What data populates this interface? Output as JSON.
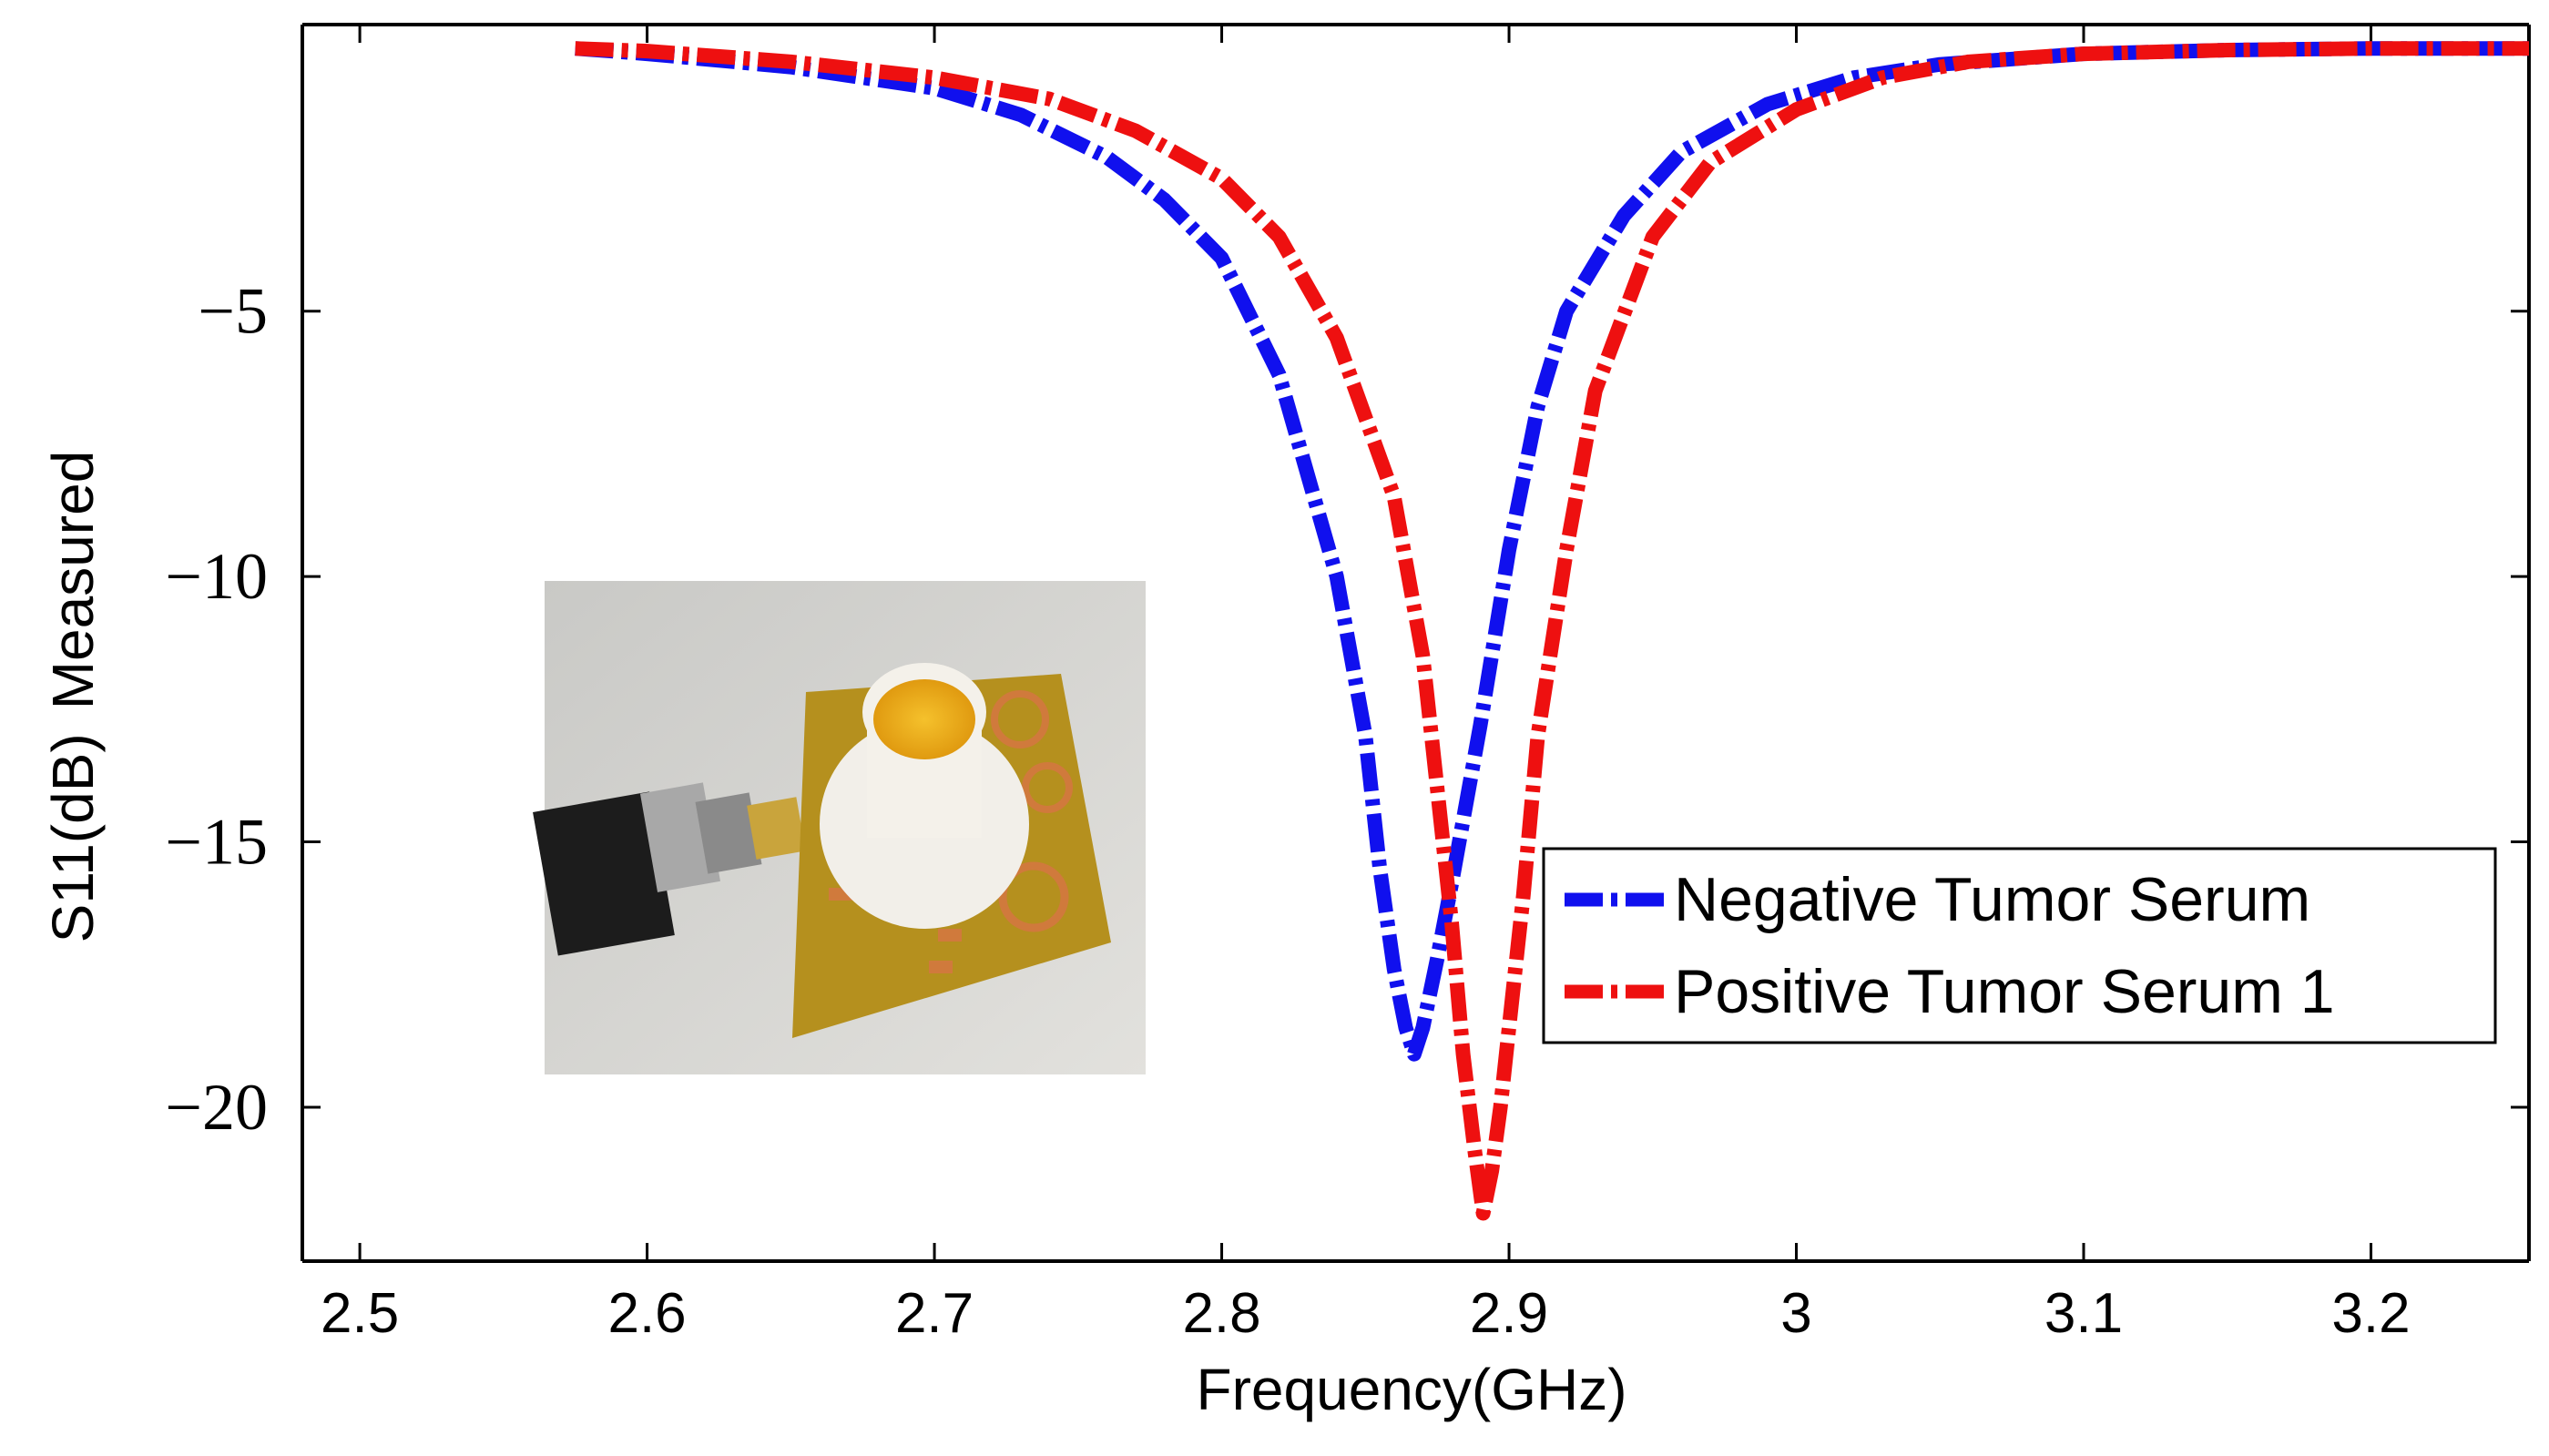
{
  "chart_data": {
    "type": "line",
    "title": "",
    "xlabel": "Frequency(GHz)",
    "ylabel_parts": [
      "S11(dB)",
      "Measured"
    ],
    "xlim": [
      2.48,
      3.255
    ],
    "ylim": [
      -22.9,
      0.4
    ],
    "xticks": [
      2.5,
      2.6,
      2.7,
      2.8,
      2.9,
      3.0,
      3.1,
      3.2
    ],
    "xtick_labels": [
      "2.5",
      "2.6",
      "2.7",
      "2.8",
      "2.9",
      "3",
      "3.1",
      "3.2"
    ],
    "yticks": [
      -5,
      -10,
      -15,
      -20
    ],
    "ytick_labels": [
      "−5",
      "−10",
      "−15",
      "−20"
    ],
    "grid": false,
    "legend_position": "bottom-right",
    "series": [
      {
        "name": "Negative Tumor Serum",
        "color": "#1010ee",
        "style": "dash-dot",
        "x": [
          2.575,
          2.6,
          2.65,
          2.7,
          2.73,
          2.76,
          2.78,
          2.8,
          2.82,
          2.84,
          2.85,
          2.855,
          2.86,
          2.864,
          2.867,
          2.87,
          2.875,
          2.88,
          2.885,
          2.89,
          2.9,
          2.91,
          2.92,
          2.94,
          2.96,
          2.99,
          3.02,
          3.05,
          3.1,
          3.15,
          3.2,
          3.255
        ],
        "y": [
          -0.05,
          -0.15,
          -0.4,
          -0.8,
          -1.3,
          -2.1,
          -2.9,
          -4.0,
          -6.2,
          -10.0,
          -13.0,
          -15.5,
          -17.4,
          -18.5,
          -19.0,
          -18.5,
          -17.2,
          -15.8,
          -14.3,
          -12.8,
          -9.5,
          -6.8,
          -5.0,
          -3.2,
          -2.0,
          -1.1,
          -0.6,
          -0.35,
          -0.15,
          -0.08,
          -0.05,
          -0.05
        ]
      },
      {
        "name": "Positive Tumor Serum 1",
        "color": "#ee1010",
        "style": "dash-dot",
        "x": [
          2.575,
          2.6,
          2.65,
          2.7,
          2.74,
          2.77,
          2.8,
          2.82,
          2.84,
          2.86,
          2.87,
          2.875,
          2.88,
          2.884,
          2.888,
          2.891,
          2.894,
          2.897,
          2.9,
          2.905,
          2.91,
          2.92,
          2.93,
          2.95,
          2.97,
          3.0,
          3.03,
          3.06,
          3.1,
          3.15,
          3.2,
          3.255
        ],
        "y": [
          -0.05,
          -0.1,
          -0.3,
          -0.6,
          -1.0,
          -1.6,
          -2.5,
          -3.6,
          -5.5,
          -8.5,
          -11.5,
          -14.0,
          -16.5,
          -19.0,
          -20.8,
          -22.0,
          -21.2,
          -20.0,
          -18.5,
          -16.0,
          -13.0,
          -9.5,
          -6.5,
          -3.6,
          -2.2,
          -1.2,
          -0.6,
          -0.3,
          -0.15,
          -0.08,
          -0.05,
          -0.05
        ]
      }
    ],
    "inset": {
      "description_name": "sensor-prototype-photo"
    }
  }
}
